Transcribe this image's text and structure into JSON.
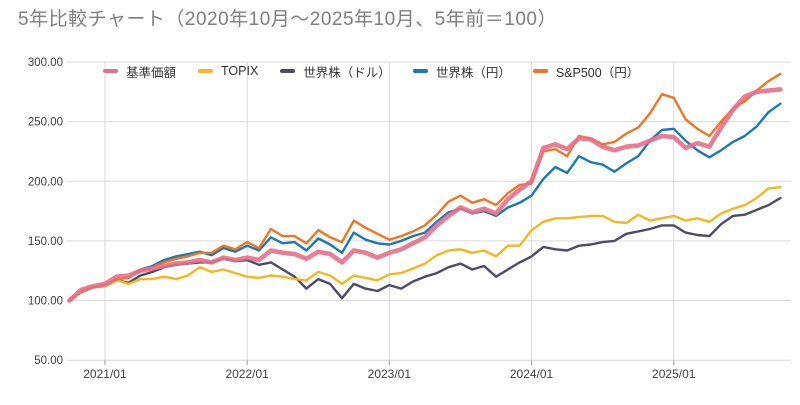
{
  "title": "5年比較チャート（2020年10月〜2025年10月、5年前＝100）",
  "axis": {
    "y_tick_labels": [
      "300.00",
      "250.00",
      "200.00",
      "150.00",
      "100.00",
      "50.00"
    ],
    "y_tick_values": [
      300,
      250,
      200,
      150,
      100,
      50
    ],
    "x_tick_labels": [
      "2021/01",
      "2022/01",
      "2023/01",
      "2024/01",
      "2025/01"
    ],
    "x_tick_month_index": [
      3,
      15,
      27,
      39,
      51
    ]
  },
  "colors": {
    "grid": "#d9d9d9",
    "tick": "#aaaaaa",
    "axis_text": "#404040",
    "title_text": "#7f7f7f",
    "background": "#ffffff"
  },
  "chart_data": {
    "type": "line",
    "title": "5年比較チャート（2020年10月〜2025年10月、5年前＝100）",
    "baseline_note": "5年前＝100",
    "period": "2020年10月〜2025年10月",
    "xlabel": "",
    "ylabel": "",
    "ylim": [
      50,
      300
    ],
    "grid": true,
    "legend_position": "top",
    "x": [
      "2020/10",
      "2020/11",
      "2020/12",
      "2021/01",
      "2021/02",
      "2021/03",
      "2021/04",
      "2021/05",
      "2021/06",
      "2021/07",
      "2021/08",
      "2021/09",
      "2021/10",
      "2021/11",
      "2021/12",
      "2022/01",
      "2022/02",
      "2022/03",
      "2022/04",
      "2022/05",
      "2022/06",
      "2022/07",
      "2022/08",
      "2022/09",
      "2022/10",
      "2022/11",
      "2022/12",
      "2023/01",
      "2023/02",
      "2023/03",
      "2023/04",
      "2023/05",
      "2023/06",
      "2023/07",
      "2023/08",
      "2023/09",
      "2023/10",
      "2023/11",
      "2023/12",
      "2024/01",
      "2024/02",
      "2024/03",
      "2024/04",
      "2024/05",
      "2024/06",
      "2024/07",
      "2024/08",
      "2024/09",
      "2024/10",
      "2024/11",
      "2024/12",
      "2025/01",
      "2025/02",
      "2025/03",
      "2025/04",
      "2025/05",
      "2025/06",
      "2025/07",
      "2025/08",
      "2025/09",
      "2025/10"
    ],
    "series": [
      {
        "name": "基準価額",
        "color": "#e56f88",
        "width": 4.6,
        "values": [
          100,
          109,
          112,
          114,
          120,
          121,
          125,
          127,
          129,
          131,
          132,
          134,
          132,
          136,
          134,
          136,
          134,
          142,
          140,
          139,
          135,
          141,
          139,
          132,
          142,
          140,
          136,
          140,
          143,
          148,
          153,
          163,
          171,
          178,
          174,
          177,
          173,
          185,
          193,
          200,
          228,
          231,
          227,
          236,
          235,
          229,
          226,
          229,
          230,
          234,
          238,
          237,
          228,
          232,
          229,
          245,
          260,
          271,
          275,
          276,
          277
        ]
      },
      {
        "name": "TOPIX",
        "color": "#f7b520",
        "width": 2.4,
        "values": [
          100,
          108,
          111,
          112,
          117,
          114,
          118,
          118,
          120,
          118,
          121,
          128,
          124,
          126,
          123,
          120,
          119,
          121,
          120,
          118,
          117,
          124,
          121,
          114,
          121,
          119,
          117,
          122,
          123,
          127,
          131,
          138,
          142,
          143,
          140,
          142,
          137,
          146,
          146,
          159,
          166,
          169,
          169,
          170,
          171,
          171,
          166,
          165,
          172,
          167,
          169,
          171,
          167,
          169,
          166,
          173,
          177,
          180,
          186,
          194,
          195
        ]
      },
      {
        "name": "世界株（ドル）",
        "color": "#4d4a6a",
        "width": 2.4,
        "values": [
          100,
          108,
          111,
          112,
          117,
          115,
          121,
          124,
          128,
          130,
          131,
          132,
          132,
          135,
          133,
          134,
          130,
          132,
          126,
          120,
          110,
          118,
          114,
          102,
          114,
          110,
          108,
          113,
          110,
          116,
          120,
          123,
          128,
          131,
          126,
          129,
          120,
          126,
          132,
          137,
          145,
          143,
          142,
          146,
          147,
          149,
          150,
          156,
          158,
          160,
          163,
          163,
          157,
          155,
          154,
          164,
          171,
          172,
          176,
          180,
          186
        ]
      },
      {
        "name": "世界株（円）",
        "color": "#1a78b8",
        "width": 2.4,
        "values": [
          100,
          107,
          111,
          113,
          118,
          119,
          126,
          129,
          134,
          137,
          139,
          141,
          138,
          144,
          141,
          146,
          142,
          153,
          148,
          149,
          142,
          152,
          147,
          140,
          157,
          151,
          148,
          147,
          150,
          154,
          157,
          166,
          174,
          177,
          173,
          175,
          171,
          178,
          182,
          188,
          202,
          212,
          207,
          221,
          216,
          214,
          208,
          215,
          221,
          234,
          243,
          244,
          234,
          226,
          220,
          226,
          233,
          238,
          246,
          258,
          265
        ]
      },
      {
        "name": "S&P500（円）",
        "color": "#f47421",
        "width": 2.4,
        "values": [
          100,
          107,
          111,
          113,
          118,
          119,
          125,
          128,
          132,
          135,
          137,
          140,
          140,
          146,
          143,
          149,
          144,
          160,
          154,
          154,
          148,
          159,
          153,
          149,
          167,
          161,
          156,
          151,
          154,
          158,
          163,
          172,
          183,
          188,
          182,
          185,
          180,
          190,
          197,
          198,
          225,
          227,
          221,
          238,
          236,
          231,
          233,
          240,
          245,
          257,
          273,
          270,
          252,
          244,
          238,
          250,
          261,
          267,
          276,
          284,
          290
        ]
      }
    ]
  }
}
